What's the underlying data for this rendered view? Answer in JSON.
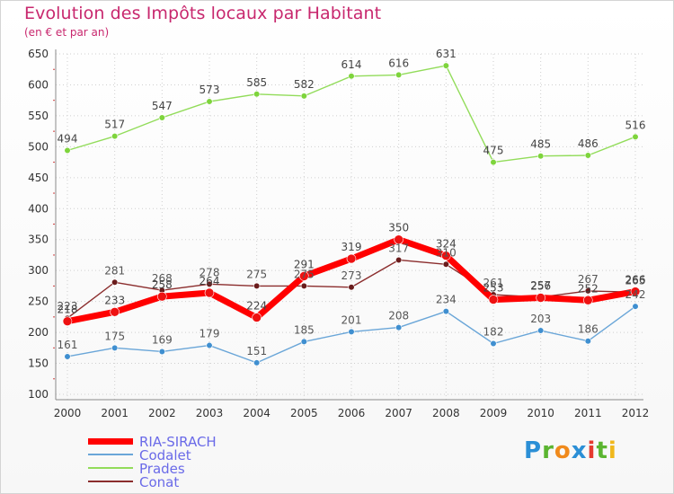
{
  "chart_data": {
    "type": "line",
    "title": "Evolution des Impôts locaux par Habitant",
    "subtitle": "(en € et par an)",
    "xlabel": "",
    "ylabel": "",
    "ylim": [
      100,
      650
    ],
    "y_ticks": [
      100,
      150,
      200,
      250,
      300,
      350,
      400,
      450,
      500,
      550,
      600,
      650
    ],
    "x": [
      "2000",
      "2001",
      "2002",
      "2003",
      "2004",
      "2005",
      "2006",
      "2007",
      "2008",
      "2009",
      "2010",
      "2011",
      "2012"
    ],
    "series": [
      {
        "name": "Prades",
        "color": "#92dc5a",
        "marker_color": "#7ed43c",
        "label_color": "#444444",
        "values": [
          494,
          517,
          547,
          573,
          585,
          582,
          614,
          616,
          631,
          475,
          485,
          486,
          516
        ],
        "labels": [
          "494",
          "517",
          "547",
          "573",
          "585",
          "582",
          "614",
          "616",
          "631",
          "475",
          "485",
          "486",
          "516"
        ]
      },
      {
        "name": "Conat",
        "color": "#8b2d2d",
        "marker_color": "#6a1c1c",
        "label_color": "#555555",
        "values": [
          223,
          281,
          268,
          278,
          275,
          275,
          273,
          317,
          310,
          261,
          257,
          267,
          265
        ],
        "labels": [
          "223",
          "281",
          "268",
          "278",
          "275",
          "275",
          "273",
          "317",
          "310",
          "261",
          "257",
          "267",
          "265"
        ]
      },
      {
        "name": "RIA-SIRACH",
        "color": "#ff0000",
        "marker_color": "#ee1111",
        "label_color": "#444444",
        "values": [
          218,
          233,
          258,
          264,
          224,
          291,
          319,
          350,
          324,
          253,
          256,
          252,
          266
        ],
        "labels": [
          "218",
          "233",
          "258",
          "264",
          "224",
          "291",
          "319",
          "350",
          "324",
          "253",
          "256",
          "252",
          "266"
        ]
      },
      {
        "name": "Codalet",
        "color": "#6aa6d8",
        "marker_color": "#3f8fd0",
        "label_color": "#555555",
        "values": [
          161,
          175,
          169,
          179,
          151,
          185,
          201,
          208,
          234,
          182,
          203,
          186,
          242
        ],
        "labels": [
          "161",
          "175",
          "169",
          "179",
          "151",
          "185",
          "201",
          "208",
          "234",
          "182",
          "203",
          "186",
          "242"
        ]
      }
    ],
    "legend": [
      "RIA-SIRACH",
      "Codalet",
      "Prades",
      "Conat"
    ],
    "legend_position": "bottom-left"
  },
  "brand": {
    "letters": [
      "P",
      "r",
      "o",
      "x",
      "i",
      "t",
      "i"
    ],
    "colors": [
      "#2b8fd6",
      "#5bb531",
      "#f08a1c",
      "#2b8fd6",
      "#e53a2f",
      "#5bb531",
      "#f0b81c"
    ]
  }
}
